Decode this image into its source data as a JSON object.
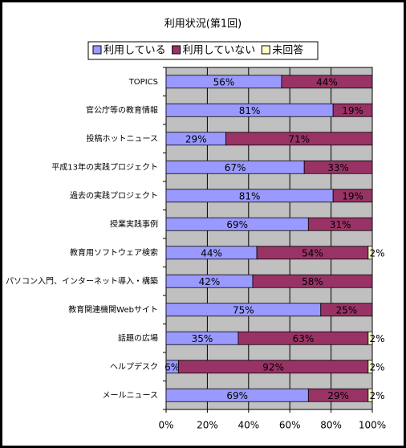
{
  "chart_data": {
    "type": "stacked-barh",
    "title": "利用状況(第1回)",
    "categories": [
      "TOPICS",
      "官公庁等の教育情報",
      "投稿ホットニュース",
      "平成13年の実践プロジェクト",
      "過去の実践プロジェクト",
      "授業実践事例",
      "教育用ソフトウェア検索",
      "パソコン入門、インターネット導入・構築",
      "教育関連機関Webサイト",
      "話題の広場",
      "ヘルプデスク",
      "メールニュース"
    ],
    "series": [
      {
        "name": "利用している",
        "color": "#9999ff",
        "values": [
          56,
          81,
          29,
          67,
          81,
          69,
          44,
          42,
          75,
          35,
          6,
          69
        ],
        "value_labels": [
          "56%",
          "81%",
          "29%",
          "67%",
          "81%",
          "69%",
          "44%",
          "42%",
          "75%",
          "35%",
          "6%",
          "69%"
        ]
      },
      {
        "name": "利用していない",
        "color": "#993366",
        "values": [
          44,
          19,
          71,
          33,
          19,
          31,
          54,
          58,
          25,
          63,
          92,
          29
        ],
        "value_labels": [
          "44%",
          "19%",
          "71%",
          "33%",
          "19%",
          "31%",
          "54%",
          "58%",
          "25%",
          "63%",
          "92%",
          "29%"
        ]
      },
      {
        "name": "未回答",
        "color": "#ffffcc",
        "values": [
          0,
          0,
          0,
          0,
          0,
          0,
          2,
          0,
          0,
          2,
          2,
          2
        ],
        "value_labels": [
          null,
          null,
          null,
          null,
          null,
          null,
          "2%",
          null,
          null,
          "2%",
          "2%",
          "2%"
        ]
      }
    ],
    "xlim": [
      0,
      100
    ],
    "xticks": [
      {
        "value": 0,
        "label": "0%"
      },
      {
        "value": 20,
        "label": "20%"
      },
      {
        "value": 40,
        "label": "40%"
      },
      {
        "value": 60,
        "label": "60%"
      },
      {
        "value": 80,
        "label": "80%"
      },
      {
        "value": 100,
        "label": "100%"
      }
    ],
    "grid": true,
    "plot_background": "#c0c0c0",
    "legend": "top"
  }
}
